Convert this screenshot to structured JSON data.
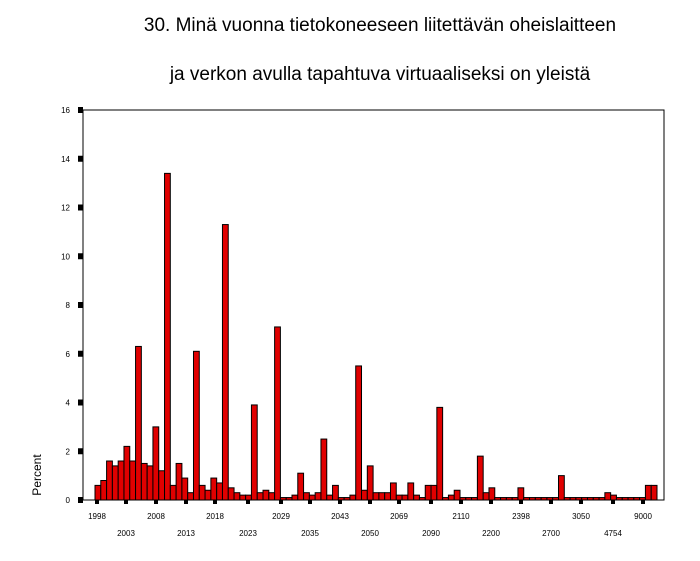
{
  "chart_data": {
    "type": "bar",
    "title_line1": "30. Minä vuonna tietokoneeseen liitettävän oheislaitteen",
    "title_line2": "ja verkon avulla tapahtuva virtuaaliseksi on yleistä",
    "ylabel": "Percent",
    "ylim": [
      0,
      16
    ],
    "yticks": [
      0,
      2,
      4,
      6,
      8,
      10,
      12,
      14,
      16
    ],
    "x_tick_labels_row1": [
      "1998",
      "2008",
      "2018",
      "2029",
      "2043",
      "2069",
      "2110",
      "2398",
      "3050",
      "9000"
    ],
    "x_tick_labels_row2": [
      "2003",
      "2013",
      "2023",
      "2035",
      "2050",
      "2090",
      "2200",
      "2700",
      "4754"
    ],
    "bar_color": "#e00000",
    "values": [
      0.6,
      0.8,
      1.6,
      1.4,
      1.6,
      2.2,
      1.6,
      6.3,
      1.5,
      1.4,
      3.0,
      1.2,
      13.4,
      0.6,
      1.5,
      0.9,
      0.3,
      6.1,
      0.6,
      0.4,
      0.9,
      0.7,
      11.3,
      0.5,
      0.3,
      0.2,
      0.2,
      3.9,
      0.3,
      0.4,
      0.3,
      7.1,
      0.1,
      0.1,
      0.2,
      1.1,
      0.3,
      0.2,
      0.3,
      2.5,
      0.2,
      0.6,
      0.1,
      0.1,
      0.2,
      5.5,
      0.4,
      1.4,
      0.3,
      0.3,
      0.3,
      0.7,
      0.2,
      0.2,
      0.7,
      0.2,
      0.1,
      0.6,
      0.6,
      3.8,
      0.1,
      0.2,
      0.4,
      0.1,
      0.1,
      0.1,
      1.8,
      0.3,
      0.5,
      0.1,
      0.1,
      0.1,
      0.1,
      0.5,
      0.1,
      0.1,
      0.1,
      0.1,
      0.1,
      0.1,
      1.0,
      0.1,
      0.1,
      0.1,
      0.1,
      0.1,
      0.1,
      0.1,
      0.3,
      0.2,
      0.1,
      0.1,
      0.1,
      0.1,
      0.1,
      0.6,
      0.6
    ]
  }
}
